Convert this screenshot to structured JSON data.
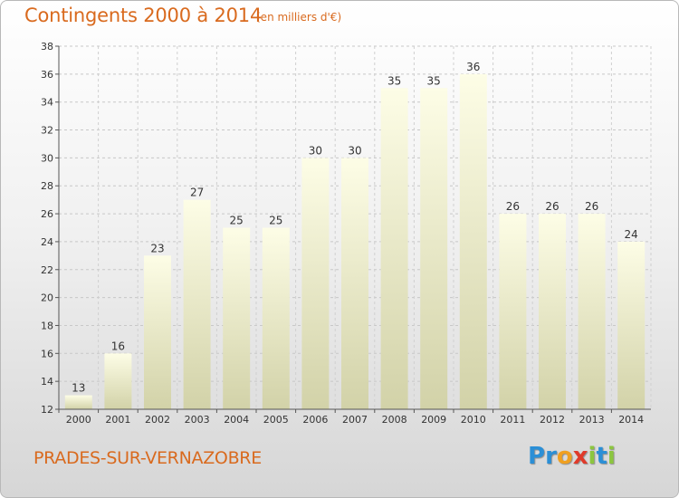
{
  "header": {
    "title": "Contingents 2000 à 2014",
    "subtitle": "(en milliers d'€)"
  },
  "footer": {
    "commune": "PRADES-SUR-VERNAZOBRE",
    "logo_letters": [
      {
        "ch": "P",
        "color": "#2b8fd6"
      },
      {
        "ch": "r",
        "color": "#2b8fd6"
      },
      {
        "ch": "o",
        "color": "#f0a020"
      },
      {
        "ch": "x",
        "color": "#e03a2a"
      },
      {
        "ch": "i",
        "color": "#8cc63f"
      },
      {
        "ch": "t",
        "color": "#2b8fd6"
      },
      {
        "ch": "i",
        "color": "#8cc63f"
      }
    ]
  },
  "chart_data": {
    "type": "bar",
    "title": "Contingents 2000 à 2014",
    "subtitle": "(en milliers d'€)",
    "categories": [
      "2000",
      "2001",
      "2002",
      "2003",
      "2004",
      "2005",
      "2006",
      "2007",
      "2008",
      "2009",
      "2010",
      "2011",
      "2012",
      "2013",
      "2014"
    ],
    "values": [
      13,
      16,
      23,
      27,
      25,
      25,
      30,
      30,
      35,
      35,
      36,
      26,
      26,
      26,
      24
    ],
    "ylim": [
      12,
      38
    ],
    "yticks": [
      12,
      14,
      16,
      18,
      20,
      22,
      24,
      26,
      28,
      30,
      32,
      34,
      36,
      38
    ],
    "grid": true,
    "bar_color_top": "#fdfde6",
    "bar_color_bottom": "#d2d2a8",
    "text_color": "#d96a1e"
  }
}
